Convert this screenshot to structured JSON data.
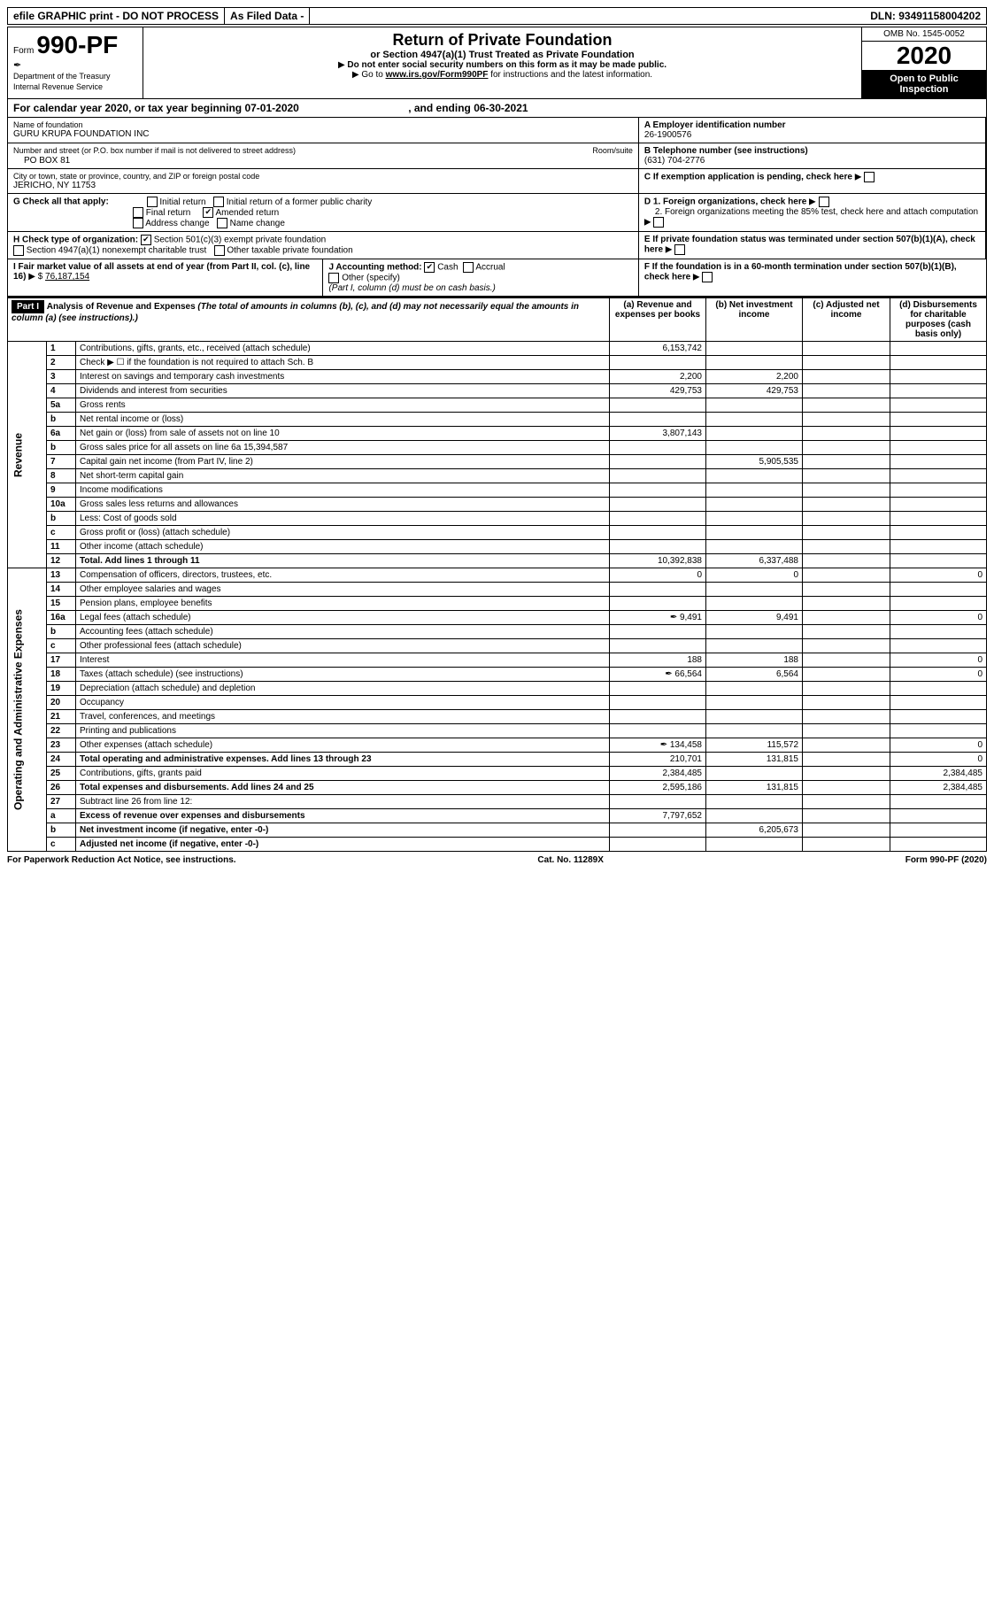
{
  "topbar": {
    "efile": "efile GRAPHIC print - DO NOT PROCESS",
    "asfiled": "As Filed Data -",
    "dln": "DLN: 93491158004202"
  },
  "header": {
    "form_prefix": "Form",
    "form_no": "990-PF",
    "dept1": "Department of the Treasury",
    "dept2": "Internal Revenue Service",
    "title": "Return of Private Foundation",
    "subtitle": "or Section 4947(a)(1) Trust Treated as Private Foundation",
    "note1": "Do not enter social security numbers on this form as it may be made public.",
    "note2_pre": "Go to ",
    "note2_link": "www.irs.gov/Form990PF",
    "note2_post": " for instructions and the latest information.",
    "omb": "OMB No. 1545-0052",
    "year": "2020",
    "open": "Open to Public Inspection"
  },
  "calyear": {
    "text_pre": "For calendar year 2020, or tax year beginning ",
    "begin": "07-01-2020",
    "text_mid": " , and ending ",
    "end": "06-30-2021"
  },
  "info": {
    "name_label": "Name of foundation",
    "name": "GURU KRUPA FOUNDATION INC",
    "ein_label": "A Employer identification number",
    "ein": "26-1900576",
    "addr_label": "Number and street (or P.O. box number if mail is not delivered to street address)",
    "addr": "PO BOX 81",
    "room_label": "Room/suite",
    "tel_label": "B Telephone number (see instructions)",
    "tel": "(631) 704-2776",
    "city_label": "City or town, state or province, country, and ZIP or foreign postal code",
    "city": "JERICHO, NY  11753",
    "c_label": "C If exemption application is pending, check here",
    "g_label": "G Check all that apply:",
    "g_opts": [
      "Initial return",
      "Initial return of a former public charity",
      "Final return",
      "Amended return",
      "Address change",
      "Name change"
    ],
    "g_checked": [
      false,
      false,
      false,
      true,
      false,
      false
    ],
    "d1": "D 1. Foreign organizations, check here",
    "d2": "2. Foreign organizations meeting the 85% test, check here and attach computation",
    "h_label": "H Check type of organization:",
    "h_501c3": "Section 501(c)(3) exempt private foundation",
    "h_4947": "Section 4947(a)(1) nonexempt charitable trust",
    "h_other": "Other taxable private foundation",
    "e_label": "E If private foundation status was terminated under section 507(b)(1)(A), check here",
    "i_label": "I Fair market value of all assets at end of year (from Part II, col. (c), line 16)",
    "i_val": "76,187,154",
    "j_label": "J Accounting method:",
    "j_cash": "Cash",
    "j_accrual": "Accrual",
    "j_other": "Other (specify)",
    "j_note": "(Part I, column (d) must be on cash basis.)",
    "f_label": "F If the foundation is in a 60-month termination under section 507(b)(1)(B), check here"
  },
  "part1": {
    "label": "Part I",
    "title": "Analysis of Revenue and Expenses",
    "title_note": "(The total of amounts in columns (b), (c), and (d) may not necessarily equal the amounts in column (a) (see instructions).)",
    "col_a": "(a) Revenue and expenses per books",
    "col_b": "(b) Net investment income",
    "col_c": "(c) Adjusted net income",
    "col_d": "(d) Disbursements for charitable purposes (cash basis only)"
  },
  "lines": [
    {
      "n": "1",
      "d": "Contributions, gifts, grants, etc., received (attach schedule)",
      "a": "6,153,742",
      "b": "",
      "c": "",
      "e": ""
    },
    {
      "n": "2",
      "d": "Check ▶ ☐ if the foundation is not required to attach Sch. B",
      "a": "",
      "b": "",
      "c": "",
      "e": ""
    },
    {
      "n": "3",
      "d": "Interest on savings and temporary cash investments",
      "a": "2,200",
      "b": "2,200",
      "c": "",
      "e": ""
    },
    {
      "n": "4",
      "d": "Dividends and interest from securities",
      "a": "429,753",
      "b": "429,753",
      "c": "",
      "e": ""
    },
    {
      "n": "5a",
      "d": "Gross rents",
      "a": "",
      "b": "",
      "c": "",
      "e": ""
    },
    {
      "n": "b",
      "d": "Net rental income or (loss)",
      "a": "",
      "b": "",
      "c": "",
      "e": ""
    },
    {
      "n": "6a",
      "d": "Net gain or (loss) from sale of assets not on line 10",
      "a": "3,807,143",
      "b": "",
      "c": "",
      "e": ""
    },
    {
      "n": "b",
      "d": "Gross sales price for all assets on line 6a            15,394,587",
      "a": "",
      "b": "",
      "c": "",
      "e": ""
    },
    {
      "n": "7",
      "d": "Capital gain net income (from Part IV, line 2)",
      "a": "",
      "b": "5,905,535",
      "c": "",
      "e": ""
    },
    {
      "n": "8",
      "d": "Net short-term capital gain",
      "a": "",
      "b": "",
      "c": "",
      "e": ""
    },
    {
      "n": "9",
      "d": "Income modifications",
      "a": "",
      "b": "",
      "c": "",
      "e": ""
    },
    {
      "n": "10a",
      "d": "Gross sales less returns and allowances",
      "a": "",
      "b": "",
      "c": "",
      "e": ""
    },
    {
      "n": "b",
      "d": "Less: Cost of goods sold",
      "a": "",
      "b": "",
      "c": "",
      "e": ""
    },
    {
      "n": "c",
      "d": "Gross profit or (loss) (attach schedule)",
      "a": "",
      "b": "",
      "c": "",
      "e": ""
    },
    {
      "n": "11",
      "d": "Other income (attach schedule)",
      "a": "",
      "b": "",
      "c": "",
      "e": ""
    },
    {
      "n": "12",
      "d": "Total. Add lines 1 through 11",
      "a": "10,392,838",
      "b": "6,337,488",
      "c": "",
      "e": "",
      "bold": true
    },
    {
      "n": "13",
      "d": "Compensation of officers, directors, trustees, etc.",
      "a": "0",
      "b": "0",
      "c": "",
      "e": "0"
    },
    {
      "n": "14",
      "d": "Other employee salaries and wages",
      "a": "",
      "b": "",
      "c": "",
      "e": ""
    },
    {
      "n": "15",
      "d": "Pension plans, employee benefits",
      "a": "",
      "b": "",
      "c": "",
      "e": ""
    },
    {
      "n": "16a",
      "d": "Legal fees (attach schedule)",
      "a": "9,491",
      "b": "9,491",
      "c": "",
      "e": "0",
      "icon": true
    },
    {
      "n": "b",
      "d": "Accounting fees (attach schedule)",
      "a": "",
      "b": "",
      "c": "",
      "e": ""
    },
    {
      "n": "c",
      "d": "Other professional fees (attach schedule)",
      "a": "",
      "b": "",
      "c": "",
      "e": ""
    },
    {
      "n": "17",
      "d": "Interest",
      "a": "188",
      "b": "188",
      "c": "",
      "e": "0"
    },
    {
      "n": "18",
      "d": "Taxes (attach schedule) (see instructions)",
      "a": "66,564",
      "b": "6,564",
      "c": "",
      "e": "0",
      "icon": true
    },
    {
      "n": "19",
      "d": "Depreciation (attach schedule) and depletion",
      "a": "",
      "b": "",
      "c": "",
      "e": ""
    },
    {
      "n": "20",
      "d": "Occupancy",
      "a": "",
      "b": "",
      "c": "",
      "e": ""
    },
    {
      "n": "21",
      "d": "Travel, conferences, and meetings",
      "a": "",
      "b": "",
      "c": "",
      "e": ""
    },
    {
      "n": "22",
      "d": "Printing and publications",
      "a": "",
      "b": "",
      "c": "",
      "e": ""
    },
    {
      "n": "23",
      "d": "Other expenses (attach schedule)",
      "a": "134,458",
      "b": "115,572",
      "c": "",
      "e": "0",
      "icon": true
    },
    {
      "n": "24",
      "d": "Total operating and administrative expenses. Add lines 13 through 23",
      "a": "210,701",
      "b": "131,815",
      "c": "",
      "e": "0",
      "bold": true
    },
    {
      "n": "25",
      "d": "Contributions, gifts, grants paid",
      "a": "2,384,485",
      "b": "",
      "c": "",
      "e": "2,384,485"
    },
    {
      "n": "26",
      "d": "Total expenses and disbursements. Add lines 24 and 25",
      "a": "2,595,186",
      "b": "131,815",
      "c": "",
      "e": "2,384,485",
      "bold": true
    },
    {
      "n": "27",
      "d": "Subtract line 26 from line 12:",
      "a": "",
      "b": "",
      "c": "",
      "e": ""
    },
    {
      "n": "a",
      "d": "Excess of revenue over expenses and disbursements",
      "a": "7,797,652",
      "b": "",
      "c": "",
      "e": "",
      "bold": true
    },
    {
      "n": "b",
      "d": "Net investment income (if negative, enter -0-)",
      "a": "",
      "b": "6,205,673",
      "c": "",
      "e": "",
      "bold": true
    },
    {
      "n": "c",
      "d": "Adjusted net income (if negative, enter -0-)",
      "a": "",
      "b": "",
      "c": "",
      "e": "",
      "bold": true
    }
  ],
  "sidelabels": {
    "revenue": "Revenue",
    "expenses": "Operating and Administrative Expenses"
  },
  "footer": {
    "left": "For Paperwork Reduction Act Notice, see instructions.",
    "mid": "Cat. No. 11289X",
    "right": "Form 990-PF (2020)"
  }
}
